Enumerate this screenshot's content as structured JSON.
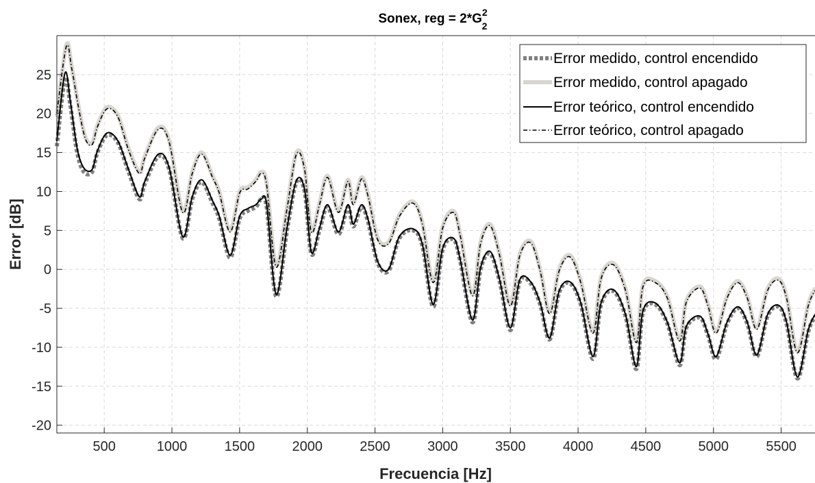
{
  "chart_data": {
    "type": "line",
    "title": "Sonex, reg = 2*G",
    "title_superscript": "2",
    "title_subscript": "2",
    "xlabel": "Frecuencia [Hz]",
    "ylabel": "Error [dB]",
    "xlim": [
      150,
      5750
    ],
    "ylim": [
      -21,
      30
    ],
    "xticks": [
      "500",
      "1000",
      "1500",
      "2000",
      "2500",
      "3000",
      "3500",
      "4000",
      "4500",
      "5000",
      "5500"
    ],
    "yticks": [
      "25",
      "20",
      "15",
      "10",
      "5",
      "0",
      "-5",
      "-10",
      "-15",
      "-20"
    ],
    "grid": true,
    "legend_position": "top-right",
    "series": [
      {
        "name": "Error medido, control encendido",
        "color": "#808080",
        "style": "dotted-thick",
        "x": [
          150,
          210,
          250,
          300,
          350,
          410,
          450,
          520,
          600,
          680,
          760,
          800,
          900,
          980,
          1080,
          1150,
          1220,
          1300,
          1350,
          1430,
          1500,
          1560,
          1620,
          1660,
          1700,
          1770,
          1850,
          1920,
          1980,
          2030,
          2090,
          2150,
          2230,
          2300,
          2340,
          2400,
          2450,
          2520,
          2600,
          2680,
          2780,
          2850,
          2930,
          3000,
          3080,
          3130,
          3220,
          3280,
          3350,
          3420,
          3500,
          3570,
          3650,
          3720,
          3790,
          3860,
          3940,
          4020,
          4110,
          4170,
          4260,
          4350,
          4430,
          4480,
          4570,
          4660,
          4750,
          4800,
          4900,
          4960,
          5020,
          5100,
          5180,
          5250,
          5320,
          5400,
          5480,
          5540,
          5620,
          5700,
          5750
        ],
        "values": [
          15.8,
          24.5,
          21,
          15,
          12.5,
          12.5,
          15,
          17.2,
          16.3,
          12.5,
          9,
          11,
          14.5,
          12.8,
          4,
          9,
          11.2,
          8.5,
          6.5,
          1.5,
          6.5,
          7.5,
          8,
          9,
          8,
          -3.5,
          5,
          11.2,
          10,
          2,
          5,
          8,
          4.5,
          8,
          5.5,
          8,
          6,
          0.8,
          -0.2,
          4,
          5,
          3,
          -4.8,
          2.5,
          3.8,
          1,
          -6.8,
          0,
          2,
          -1.5,
          -7.8,
          -1.5,
          -1.8,
          -4.5,
          -9,
          -3,
          -1.8,
          -4.5,
          -11.5,
          -4.5,
          -2.8,
          -6,
          -12.8,
          -5.5,
          -4.5,
          -7,
          -12.3,
          -7.5,
          -6.2,
          -8.5,
          -11.5,
          -7,
          -5,
          -7,
          -11.2,
          -6,
          -4.8,
          -7,
          -14,
          -8,
          -6
        ]
      },
      {
        "name": "Error medido, control apagado",
        "color": "#d8d6d0",
        "style": "solid-thick",
        "x": [
          150,
          220,
          260,
          310,
          360,
          410,
          450,
          520,
          600,
          680,
          760,
          800,
          900,
          980,
          1080,
          1150,
          1220,
          1300,
          1350,
          1430,
          1500,
          1560,
          1620,
          1660,
          1700,
          1770,
          1850,
          1920,
          1980,
          2030,
          2090,
          2150,
          2230,
          2300,
          2340,
          2400,
          2450,
          2520,
          2600,
          2680,
          2780,
          2850,
          2930,
          3000,
          3080,
          3130,
          3220,
          3280,
          3350,
          3420,
          3500,
          3570,
          3650,
          3720,
          3790,
          3860,
          3940,
          4020,
          4110,
          4170,
          4260,
          4350,
          4430,
          4480,
          4570,
          4660,
          4750,
          4800,
          4900,
          4960,
          5020,
          5100,
          5180,
          5250,
          5320,
          5400,
          5480,
          5540,
          5620,
          5700,
          5750
        ],
        "values": [
          19.8,
          28.8,
          26,
          21,
          17,
          16.2,
          18.5,
          20.8,
          19.8,
          15.5,
          12.5,
          14.5,
          18.2,
          16.5,
          7.5,
          12.5,
          15,
          12,
          10,
          5,
          10,
          10.5,
          11.5,
          12.5,
          11,
          0.5,
          8,
          15,
          13,
          5,
          8.5,
          12,
          7.5,
          11.5,
          8.5,
          11.8,
          9.5,
          4,
          3.5,
          7,
          8.7,
          6,
          -1.5,
          5.5,
          7.5,
          4.5,
          -3.2,
          3.5,
          5.8,
          2,
          -4.5,
          2,
          3.6,
          0,
          -5.5,
          0,
          1.8,
          -1.5,
          -8,
          -1,
          0.8,
          -2.5,
          -9.2,
          -2,
          -1.5,
          -3.5,
          -9,
          -4,
          -2.2,
          -4.5,
          -8,
          -3.5,
          -1.5,
          -3.5,
          -7.5,
          -2.5,
          -1.2,
          -3.5,
          -10.5,
          -4.5,
          -2.5
        ]
      },
      {
        "name": "Error teórico, control encendido",
        "color": "#000000",
        "style": "solid",
        "x": [
          150,
          210,
          250,
          300,
          350,
          410,
          450,
          520,
          600,
          680,
          760,
          800,
          900,
          980,
          1080,
          1150,
          1220,
          1300,
          1350,
          1430,
          1500,
          1560,
          1620,
          1660,
          1700,
          1770,
          1850,
          1920,
          1980,
          2030,
          2090,
          2150,
          2230,
          2300,
          2340,
          2400,
          2450,
          2520,
          2600,
          2680,
          2780,
          2850,
          2930,
          3000,
          3080,
          3130,
          3220,
          3280,
          3350,
          3420,
          3500,
          3570,
          3650,
          3720,
          3790,
          3860,
          3940,
          4020,
          4110,
          4170,
          4260,
          4350,
          4430,
          4480,
          4570,
          4660,
          4750,
          4800,
          4900,
          4960,
          5020,
          5100,
          5180,
          5250,
          5320,
          5400,
          5480,
          5540,
          5620,
          5700,
          5750
        ],
        "values": [
          16.5,
          25.2,
          21.5,
          15.5,
          13,
          12.8,
          15.2,
          17.5,
          16.5,
          12.8,
          9.3,
          11.3,
          14.8,
          13,
          4.2,
          9.3,
          11.5,
          8.8,
          6.8,
          1.8,
          6.8,
          7.8,
          8.3,
          9,
          8.3,
          -3.2,
          5.3,
          11.4,
          10.2,
          2.2,
          5.3,
          8.3,
          4.8,
          8.3,
          5.8,
          8.3,
          6.3,
          1,
          0,
          4.2,
          5.2,
          3.2,
          -4.5,
          2.7,
          4,
          1.2,
          -6.5,
          0.2,
          2.3,
          -1.3,
          -7.5,
          -1.3,
          -1.6,
          -4.3,
          -8.8,
          -2.8,
          -1.6,
          -4.3,
          -11.2,
          -4.3,
          -2.6,
          -5.8,
          -12.5,
          -5.3,
          -4.3,
          -6.8,
          -12,
          -7.3,
          -6,
          -8.3,
          -11.2,
          -6.8,
          -4.8,
          -6.8,
          -11,
          -5.8,
          -4.6,
          -6.8,
          -13.8,
          -7.8,
          -5.8
        ]
      },
      {
        "name": "Error teórico, control apagado",
        "color": "#000000",
        "style": "dashdot",
        "x": [
          150,
          220,
          260,
          310,
          360,
          410,
          450,
          520,
          600,
          680,
          760,
          800,
          900,
          980,
          1080,
          1150,
          1220,
          1300,
          1350,
          1430,
          1500,
          1560,
          1620,
          1660,
          1700,
          1770,
          1850,
          1920,
          1980,
          2030,
          2090,
          2150,
          2230,
          2300,
          2340,
          2400,
          2450,
          2520,
          2600,
          2680,
          2780,
          2850,
          2930,
          3000,
          3080,
          3130,
          3220,
          3280,
          3350,
          3420,
          3500,
          3570,
          3650,
          3720,
          3790,
          3860,
          3940,
          4020,
          4110,
          4170,
          4260,
          4350,
          4430,
          4480,
          4570,
          4660,
          4750,
          4800,
          4900,
          4960,
          5020,
          5100,
          5180,
          5250,
          5320,
          5400,
          5480,
          5540,
          5620,
          5700,
          5750
        ],
        "values": [
          20,
          28.6,
          25.8,
          20.8,
          16.8,
          16,
          18.3,
          20.6,
          19.6,
          15.3,
          12.3,
          14.3,
          18,
          16.3,
          7.3,
          12.3,
          14.8,
          11.8,
          9.8,
          4.8,
          9.8,
          10.3,
          11.3,
          12.3,
          10.8,
          0.3,
          7.8,
          14.8,
          12.8,
          4.8,
          8.3,
          11.8,
          7.3,
          11.3,
          8.3,
          11.6,
          9.3,
          3.8,
          3.3,
          6.8,
          8.5,
          5.8,
          -1.7,
          5.3,
          7.3,
          4.3,
          -3.4,
          3.3,
          5.6,
          1.8,
          -4.7,
          1.8,
          3.4,
          -0.2,
          -5.7,
          -0.2,
          1.6,
          -1.7,
          -8.2,
          -1.2,
          0.6,
          -2.7,
          -9.4,
          -2.2,
          -1.7,
          -3.7,
          -9.2,
          -4.2,
          -2.4,
          -4.7,
          -8.2,
          -3.7,
          -1.7,
          -3.7,
          -7.7,
          -2.7,
          -1.4,
          -3.7,
          -10.7,
          -4.7,
          -2.7
        ]
      }
    ]
  }
}
